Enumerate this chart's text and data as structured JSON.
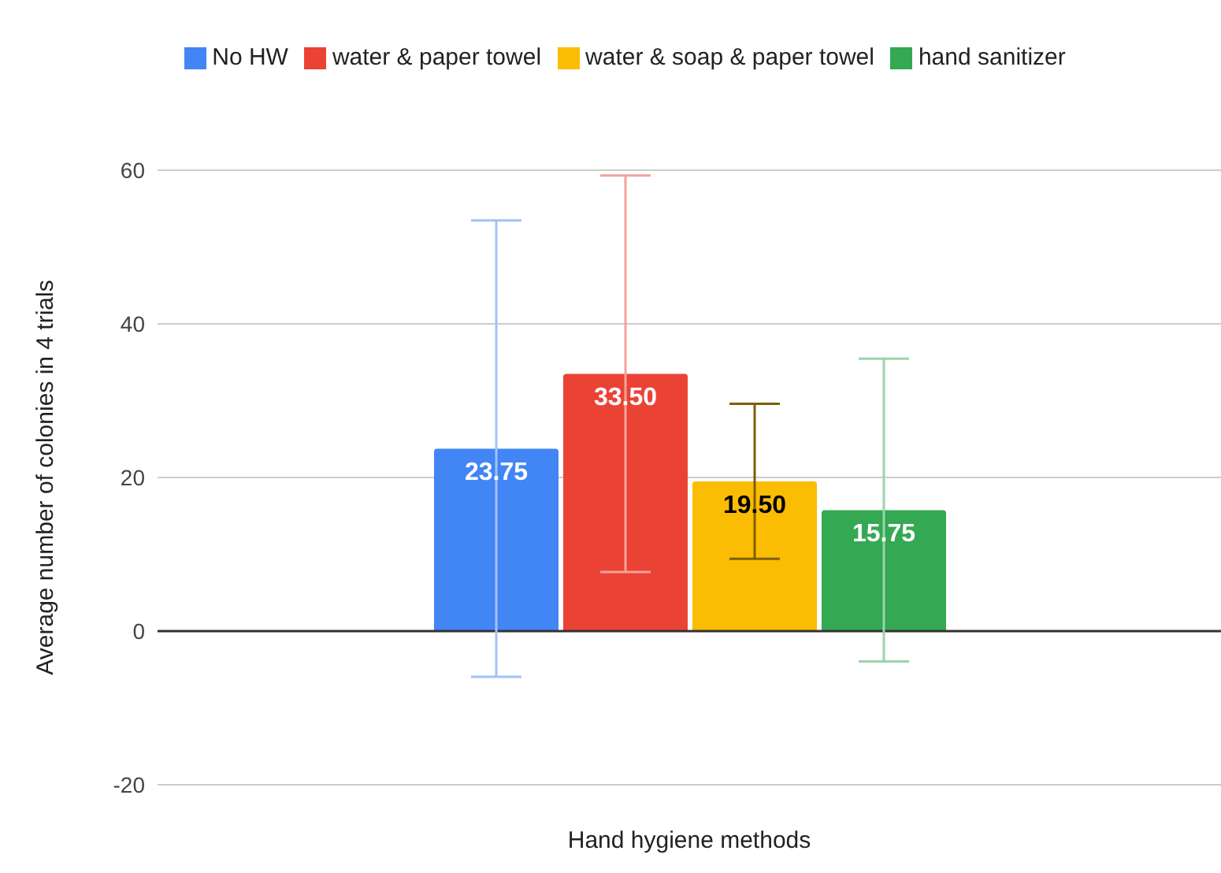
{
  "chart_data": {
    "type": "bar",
    "xlabel": "Hand hygiene methods",
    "ylabel": "Average number of colonies in 4 trials",
    "categories": [
      null
    ],
    "series": [
      {
        "name": "No HW",
        "color": "#4285f4",
        "values": [
          23.75
        ],
        "errors": [
          29.7
        ]
      },
      {
        "name": "water & paper towel",
        "color": "#ea4335",
        "values": [
          33.5
        ],
        "errors": [
          25.8
        ]
      },
      {
        "name": "water & soap & paper towel",
        "color": "#fbbc04",
        "values": [
          19.5
        ],
        "errors": [
          10.1
        ]
      },
      {
        "name": "hand sanitizer",
        "color": "#34a853",
        "values": [
          15.75
        ],
        "errors": [
          19.7
        ]
      }
    ],
    "value_labels": [
      [
        "23.75"
      ],
      [
        "33.50"
      ],
      [
        "19.50"
      ],
      [
        "15.75"
      ]
    ],
    "ylim": [
      -20,
      60
    ],
    "yticks": [
      -20,
      0,
      20,
      40,
      60
    ],
    "grid": "y",
    "legend": "top"
  }
}
